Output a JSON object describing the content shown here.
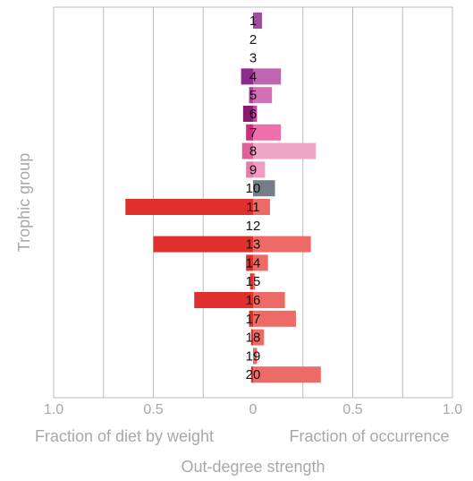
{
  "chart_data": {
    "type": "back-to-back-bar",
    "y_label": "Trophic group",
    "x_label": "Out-degree strength",
    "categories": [
      "1",
      "2",
      "3",
      "4",
      "5",
      "6",
      "7",
      "8",
      "9",
      "10",
      "11",
      "12",
      "13",
      "14",
      "15",
      "16",
      "17",
      "18",
      "19",
      "20"
    ],
    "series": [
      {
        "name": "Fraction of diet by weight",
        "side": "left",
        "colors": [
          "#8e2a8c",
          "#8e2a8c",
          "#8e2a8c",
          "#8e2a8c",
          "#b03f9c",
          "#8a1a6e",
          "#d02b7e",
          "#e06099",
          "#e879a9",
          "#4b5563",
          "#e0302d",
          "#e0302d",
          "#e0302d",
          "#e0302d",
          "#e0302d",
          "#e0302d",
          "#e0302d",
          "#e0302d",
          "#e0302d",
          "#e0302d"
        ],
        "values": [
          0,
          0,
          0,
          0.06,
          0.02,
          0.05,
          0.035,
          0.055,
          0.035,
          0,
          0.64,
          0,
          0.5,
          0.035,
          0.015,
          0.295,
          0.02,
          0.01,
          0,
          0.01
        ]
      },
      {
        "name": "Fraction of occurrence",
        "side": "right",
        "colors": [
          "#9b4f9b",
          "#9b4f9b",
          "#9b4f9b",
          "#c066b0",
          "#d36fb5",
          "#c04a9b",
          "#ee6faa",
          "#f0a6c6",
          "#f09cc1",
          "#757d87",
          "#ec6b66",
          "#ec6b66",
          "#ec6b66",
          "#ec6b66",
          "#ec6b66",
          "#ec6b66",
          "#ec6b66",
          "#ec6b66",
          "#ec6b66",
          "#ec6b66"
        ],
        "values": [
          0.045,
          0,
          0,
          0.14,
          0.095,
          0.02,
          0.14,
          0.315,
          0.06,
          0.11,
          0.085,
          0,
          0.29,
          0.075,
          0.01,
          0.16,
          0.215,
          0.055,
          0.02,
          0.34
        ]
      }
    ],
    "xlim": [
      0,
      1
    ],
    "xticks": [
      0,
      {
        "value": 0.5,
        "label": "0.5"
      },
      {
        "value": 1,
        "label": "1.0"
      }
    ],
    "gridlines": [
      0.25,
      0.5,
      0.75,
      1
    ],
    "grid": true
  }
}
